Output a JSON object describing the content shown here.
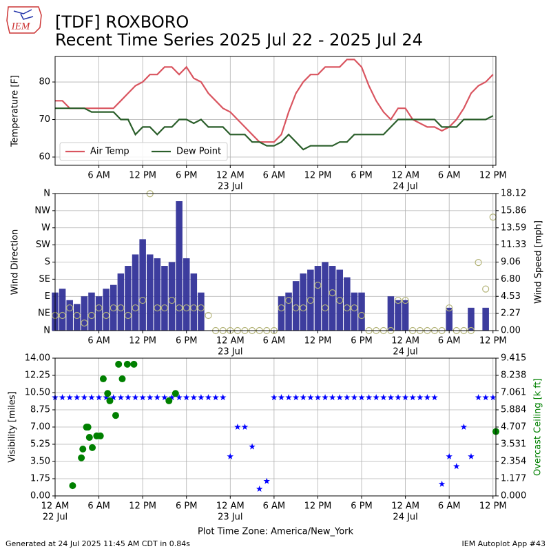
{
  "header": {
    "logo_text": "IEM",
    "title": "[TDF] ROXBORO",
    "subtitle": "Recent Time Series 2025 Jul 22 - 2025 Jul 24"
  },
  "footer": {
    "left": "Generated at 24 Jul 2025 11:45 AM CDT in 0.84s",
    "right": "IEM Autoplot App #43"
  },
  "chart_data": [
    {
      "type": "line",
      "ylabel": "Temperature [F]",
      "legend": "lower left",
      "grid": true,
      "xlim": [
        0,
        60.4
      ],
      "ylim": [
        57.8,
        86.8
      ],
      "yticks": [
        60,
        70,
        80
      ],
      "xticks": [
        {
          "value": 6,
          "label": "6 AM"
        },
        {
          "value": 12,
          "label": "12 PM"
        },
        {
          "value": 18,
          "label": "6 PM"
        },
        {
          "value": 24,
          "label": "12 AM",
          "date": "23 Jul"
        },
        {
          "value": 30,
          "label": "6 AM"
        },
        {
          "value": 36,
          "label": "12 PM"
        },
        {
          "value": 42,
          "label": "6 PM"
        },
        {
          "value": 48,
          "label": "12 AM",
          "date": "24 Jul"
        },
        {
          "value": 54,
          "label": "6 AM"
        },
        {
          "value": 60,
          "label": "12 PM"
        }
      ],
      "x": [
        0,
        1,
        2,
        3,
        4,
        5,
        6,
        7,
        8,
        9,
        10,
        11,
        12,
        13,
        14,
        15,
        16,
        17,
        18,
        19,
        20,
        21,
        22,
        23,
        24,
        25,
        26,
        27,
        28,
        29,
        30,
        31,
        32,
        33,
        34,
        35,
        36,
        37,
        38,
        39,
        40,
        41,
        42,
        43,
        44,
        45,
        46,
        47,
        48,
        49,
        50,
        51,
        52,
        53,
        54,
        55,
        56,
        57,
        58,
        59,
        60
      ],
      "series": [
        {
          "name": "Air Temp",
          "color": "#d9545f",
          "values": [
            75,
            75,
            73,
            73,
            73,
            73,
            73,
            73,
            73,
            75,
            77,
            79,
            80,
            82,
            82,
            84,
            84,
            82,
            84,
            81,
            80,
            77,
            75,
            73,
            72,
            70,
            68,
            66,
            64,
            64,
            64,
            66,
            72,
            77,
            80,
            82,
            82,
            84,
            84,
            84,
            86,
            86,
            84,
            79,
            75,
            72,
            70,
            73,
            73,
            70,
            69,
            68,
            68,
            67,
            68,
            70,
            73,
            77,
            79,
            80,
            82
          ]
        },
        {
          "name": "Dew Point",
          "color": "#2a5e2a",
          "values": [
            73,
            73,
            73,
            73,
            73,
            72,
            72,
            72,
            72,
            70,
            70,
            66,
            68,
            68,
            66,
            68,
            68,
            70,
            70,
            69,
            70,
            68,
            68,
            68,
            66,
            66,
            66,
            64,
            64,
            63,
            63,
            64,
            66,
            64,
            62,
            63,
            63,
            63,
            63,
            64,
            64,
            66,
            66,
            66,
            66,
            66,
            68,
            70,
            70,
            70,
            70,
            70,
            70,
            68,
            68,
            68,
            70,
            70,
            70,
            70,
            71
          ]
        }
      ]
    },
    {
      "type": "bar",
      "ylabel": "Wind Direction",
      "y2label": "Wind Speed [mph]",
      "grid": true,
      "xlim": [
        0,
        60.4
      ],
      "ylim": [
        0,
        360
      ],
      "yticks": [
        {
          "value": 0,
          "label": "N"
        },
        {
          "value": 45,
          "label": "NE"
        },
        {
          "value": 90,
          "label": "E"
        },
        {
          "value": 135,
          "label": "SE"
        },
        {
          "value": 180,
          "label": "S"
        },
        {
          "value": 225,
          "label": "SW"
        },
        {
          "value": 270,
          "label": "W"
        },
        {
          "value": 315,
          "label": "NW"
        },
        {
          "value": 360,
          "label": "N"
        }
      ],
      "y2lim": [
        0,
        18.12
      ],
      "y2ticks": [
        {
          "value": 0,
          "label": "0.00"
        },
        2.27,
        4.53,
        {
          "value": 6.8,
          "label": "6.80"
        },
        9.06,
        11.33,
        13.59,
        15.86,
        18.12
      ],
      "xticks": [
        {
          "value": 6,
          "label": "6 AM"
        },
        {
          "value": 12,
          "label": "12 PM"
        },
        {
          "value": 18,
          "label": "6 PM"
        },
        {
          "value": 24,
          "label": "12 AM",
          "date": "23 Jul"
        },
        {
          "value": 30,
          "label": "6 AM"
        },
        {
          "value": 36,
          "label": "12 PM"
        },
        {
          "value": 42,
          "label": "6 PM"
        },
        {
          "value": 48,
          "label": "12 AM",
          "date": "24 Jul"
        },
        {
          "value": 54,
          "label": "6 AM"
        },
        {
          "value": 60,
          "label": "12 PM"
        }
      ],
      "x": [
        0,
        1,
        2,
        3,
        4,
        5,
        6,
        7,
        8,
        9,
        10,
        11,
        12,
        13,
        14,
        15,
        16,
        17,
        18,
        19,
        20,
        21,
        22,
        23,
        24,
        25,
        26,
        27,
        28,
        29,
        30,
        31,
        32,
        33,
        34,
        35,
        36,
        37,
        38,
        39,
        40,
        41,
        42,
        43,
        44,
        45,
        46,
        47,
        48,
        49,
        50,
        51,
        52,
        53,
        54,
        55,
        56,
        57,
        58,
        59,
        60
      ],
      "series": [
        {
          "type": "bar",
          "color": "#333399",
          "values": [
            100,
            110,
            80,
            70,
            90,
            100,
            90,
            110,
            120,
            150,
            170,
            200,
            240,
            200,
            190,
            170,
            180,
            340,
            190,
            150,
            100,
            0,
            0,
            0,
            0,
            0,
            0,
            0,
            0,
            0,
            0,
            90,
            100,
            130,
            150,
            160,
            170,
            180,
            170,
            160,
            140,
            100,
            100,
            0,
            0,
            0,
            90,
            80,
            80,
            0,
            0,
            0,
            0,
            0,
            60,
            0,
            0,
            60,
            0,
            60,
            0
          ]
        },
        {
          "type": "scatter",
          "marker": "o",
          "axis": "y2",
          "color": "#b5b57a",
          "values": [
            2,
            2,
            3,
            2,
            1,
            2,
            3,
            2,
            3,
            3,
            2,
            3,
            4,
            18.1,
            3,
            3,
            4,
            3,
            3,
            3,
            3,
            2,
            0,
            0,
            0,
            0,
            0,
            0,
            0,
            0,
            0,
            3,
            4,
            3,
            3,
            4,
            6,
            3,
            5,
            4,
            3,
            3,
            2,
            0,
            0,
            0,
            0,
            4,
            4,
            0,
            0,
            0,
            0,
            0,
            3,
            0,
            0,
            0,
            9,
            5.5,
            15
          ]
        }
      ]
    },
    {
      "type": "scatter",
      "ylabel": "Visibility [miles]",
      "y2label": "Overcast Ceiling [k ft]",
      "y2color": "#008000",
      "grid": true,
      "xlabel": "Plot Time Zone: America/New_York",
      "xlim": [
        0,
        60.4
      ],
      "ylim": [
        0,
        14
      ],
      "yticks": [
        {
          "value": 0,
          "label": "0.00"
        },
        1.75,
        {
          "value": 3.5,
          "label": "3.50"
        },
        5.25,
        {
          "value": 7,
          "label": "7.00"
        },
        8.75,
        {
          "value": 10.5,
          "label": "10.50"
        },
        12.25,
        {
          "value": 14,
          "label": "14.00"
        }
      ],
      "y2lim": [
        0,
        9.415
      ],
      "y2ticks": [
        {
          "value": 0,
          "label": "0.000"
        },
        1.177,
        2.354,
        3.531,
        4.707,
        5.884,
        7.061,
        8.238,
        9.415
      ],
      "xticks": [
        {
          "value": 0,
          "label": "12 AM",
          "date": "22 Jul"
        },
        {
          "value": 6,
          "label": "6 AM"
        },
        {
          "value": 12,
          "label": "12 PM"
        },
        {
          "value": 18,
          "label": "6 PM"
        },
        {
          "value": 24,
          "label": "12 AM",
          "date": "23 Jul"
        },
        {
          "value": 30,
          "label": "6 AM"
        },
        {
          "value": 36,
          "label": "12 PM"
        },
        {
          "value": 42,
          "label": "6 PM"
        },
        {
          "value": 48,
          "label": "12 AM",
          "date": "24 Jul"
        },
        {
          "value": 54,
          "label": "6 AM"
        },
        {
          "value": 60,
          "label": "12 PM"
        }
      ],
      "series": [
        {
          "marker": "*",
          "color": "#0000ff",
          "x": [
            0,
            1,
            2,
            3,
            4,
            5,
            6,
            7,
            8,
            9,
            10,
            11,
            12,
            13,
            14,
            15,
            16,
            17,
            18,
            19,
            20,
            21,
            22,
            23,
            24,
            25,
            26,
            27,
            28,
            29,
            30,
            31,
            32,
            33,
            34,
            35,
            36,
            37,
            38,
            39,
            40,
            41,
            42,
            43,
            44,
            45,
            46,
            47,
            48,
            49,
            50,
            51,
            52,
            53,
            54,
            55,
            56,
            57,
            58,
            59,
            60
          ],
          "values": [
            10,
            10,
            10,
            10,
            10,
            10,
            10,
            10,
            10,
            10,
            10,
            10,
            10,
            10,
            10,
            10,
            10,
            10,
            10,
            10,
            10,
            10,
            10,
            10,
            4,
            7,
            7,
            5,
            0.7,
            1.5,
            10,
            10,
            10,
            10,
            10,
            10,
            10,
            10,
            10,
            10,
            10,
            10,
            10,
            10,
            10,
            10,
            10,
            10,
            10,
            10,
            10,
            10,
            10,
            1.2,
            4,
            3,
            7,
            4,
            10,
            10,
            10
          ]
        },
        {
          "marker": "filled",
          "axis": "y2",
          "color": "#008000",
          "x": [
            2.4,
            3.6,
            3.8,
            4.3,
            4.5,
            4.7,
            5.1,
            5.7,
            6.2,
            6.6,
            7.2,
            7.5,
            8.3,
            8.7,
            9.2,
            9.9,
            10.8,
            15.6,
            16.5,
            60.4
          ],
          "values": [
            0.7,
            2.6,
            3.2,
            4.7,
            4.7,
            4.0,
            3.3,
            4.1,
            4.1,
            8.0,
            7.0,
            6.5,
            5.5,
            9.0,
            8.0,
            9.0,
            9.0,
            6.5,
            7.0,
            4.4
          ]
        }
      ]
    }
  ]
}
